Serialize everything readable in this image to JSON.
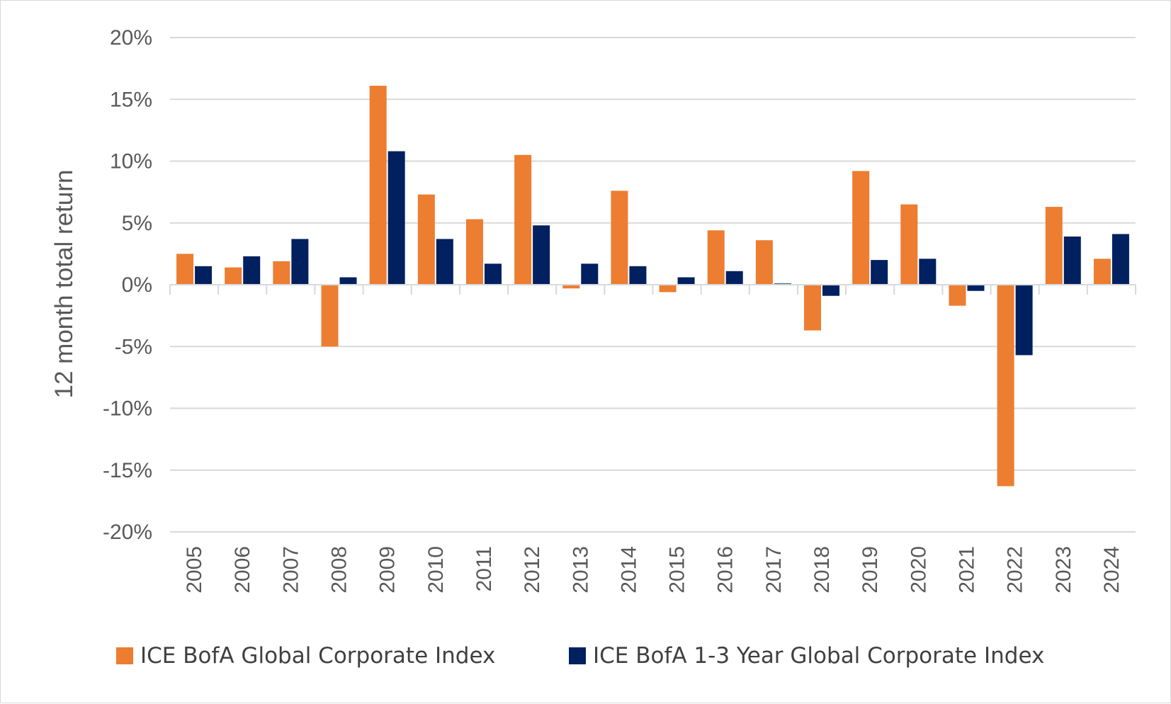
{
  "chart_data": {
    "type": "bar",
    "title": "",
    "xlabel": "",
    "ylabel": "12 month total return",
    "ylim": [
      -20,
      20
    ],
    "yticks": [
      20,
      15,
      10,
      5,
      0,
      -5,
      -10,
      -15,
      -20
    ],
    "ytick_labels": [
      "20%",
      "15%",
      "10%",
      "5%",
      "0%",
      "-5%",
      "-10%",
      "-15%",
      "-20%"
    ],
    "grid": true,
    "legend_position": "bottom",
    "categories": [
      "2005",
      "2006",
      "2007",
      "2008",
      "2009",
      "2010",
      "2011",
      "2012",
      "2013",
      "2014",
      "2015",
      "2016",
      "2017",
      "2018",
      "2019",
      "2020",
      "2021",
      "2022",
      "2023",
      "2024"
    ],
    "series": [
      {
        "name": "ICE BofA Global Corporate Index",
        "color": "#ED7D31",
        "values": [
          2.5,
          1.4,
          1.9,
          -5.0,
          16.1,
          7.3,
          5.3,
          10.5,
          -0.3,
          7.6,
          -0.6,
          4.4,
          3.6,
          -3.7,
          9.2,
          6.5,
          -1.7,
          -16.3,
          6.3,
          2.1
        ]
      },
      {
        "name": "ICE BofA 1-3 Year Global Corporate Index",
        "color": "#002060",
        "values": [
          1.5,
          2.3,
          3.7,
          0.6,
          10.8,
          3.7,
          1.7,
          4.8,
          1.7,
          1.5,
          0.6,
          1.1,
          0.1,
          -0.9,
          2.0,
          2.1,
          -0.5,
          -5.7,
          3.9,
          4.1
        ]
      }
    ]
  }
}
